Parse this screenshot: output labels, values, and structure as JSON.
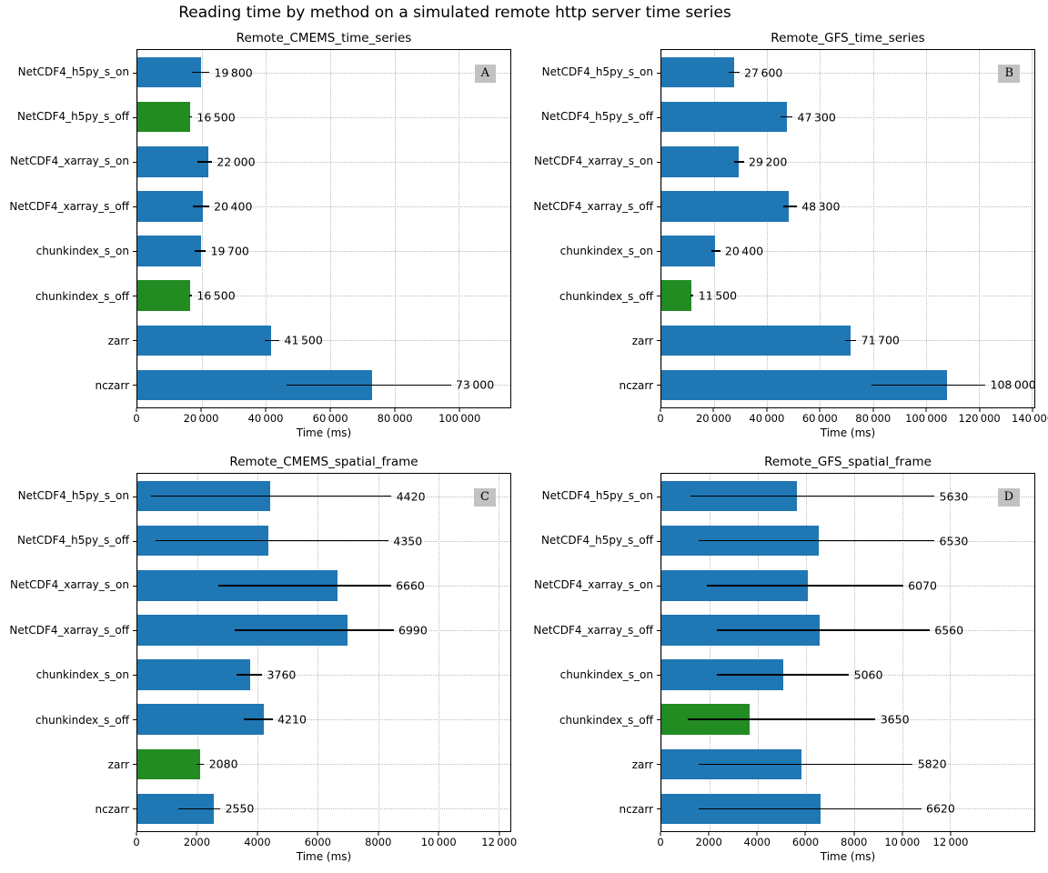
{
  "figure_title": "Reading time by method on a simulated remote http server time series",
  "colors": {
    "bar_blue": "#1f77b4",
    "bar_green": "#228b22",
    "error_bar": "#000000",
    "grid_line": "#bbbbbb",
    "panel_badge_bg": "#c2c2c2"
  },
  "chart_data": [
    {
      "type": "bar",
      "orientation": "horizontal",
      "letter": "A",
      "title": "Remote_CMEMS_time_series",
      "xlabel": "Time (ms)",
      "xlim": [
        0,
        116000
      ],
      "grid": true,
      "categories": [
        "NetCDF4_h5py_s_on",
        "NetCDF4_h5py_s_off",
        "NetCDF4_xarray_s_on",
        "NetCDF4_xarray_s_off",
        "chunkindex_s_on",
        "chunkindex_s_off",
        "zarr",
        "nczarr"
      ],
      "values": [
        19800,
        16500,
        22000,
        20400,
        19700,
        16500,
        41500,
        73000
      ],
      "value_labels": [
        "19 800",
        "16 500",
        "22 000",
        "20 400",
        "19 700",
        "16 500",
        "41 500",
        "73 000"
      ],
      "errors_low": [
        17000,
        16100,
        18800,
        17200,
        17800,
        16100,
        39500,
        46500
      ],
      "errors_high": [
        22400,
        17000,
        23200,
        22300,
        21300,
        17000,
        44200,
        97500
      ],
      "green_bar_indices": [
        1,
        5
      ],
      "xticks": [
        0,
        20000,
        40000,
        60000,
        80000,
        100000
      ],
      "xtick_labels": [
        "0",
        "20 000",
        "40 000",
        "60 000",
        "80 000",
        "100 000"
      ]
    },
    {
      "type": "bar",
      "orientation": "horizontal",
      "letter": "B",
      "title": "Remote_GFS_time_series",
      "xlabel": "Time (ms)",
      "xlim": [
        0,
        141000
      ],
      "grid": true,
      "categories": [
        "NetCDF4_h5py_s_on",
        "NetCDF4_h5py_s_off",
        "NetCDF4_xarray_s_on",
        "NetCDF4_xarray_s_off",
        "chunkindex_s_on",
        "chunkindex_s_off",
        "zarr",
        "nczarr"
      ],
      "values": [
        27600,
        47300,
        29200,
        48300,
        20400,
        11500,
        71700,
        108000
      ],
      "value_labels": [
        "27 600",
        "47 300",
        "29 200",
        "48 300",
        "20 400",
        "11 500",
        "71 700",
        "108 000"
      ],
      "errors_low": [
        25500,
        45000,
        27400,
        46200,
        19000,
        11000,
        69500,
        79500
      ],
      "errors_high": [
        29500,
        49600,
        31200,
        51200,
        22200,
        12200,
        73700,
        122500
      ],
      "green_bar_indices": [
        5
      ],
      "xticks": [
        0,
        20000,
        40000,
        60000,
        80000,
        100000,
        120000,
        140000
      ],
      "xtick_labels": [
        "0",
        "20 000",
        "40 000",
        "60 000",
        "80 000",
        "100 000",
        "120 000",
        "140 000"
      ]
    },
    {
      "type": "bar",
      "orientation": "horizontal",
      "letter": "C",
      "title": "Remote_CMEMS_spatial_frame",
      "xlabel": "Time (ms)",
      "xlim": [
        0,
        12400
      ],
      "grid": true,
      "categories": [
        "NetCDF4_h5py_s_on",
        "NetCDF4_h5py_s_off",
        "NetCDF4_xarray_s_on",
        "NetCDF4_xarray_s_off",
        "chunkindex_s_on",
        "chunkindex_s_off",
        "zarr",
        "nczarr"
      ],
      "values": [
        4420,
        4350,
        6660,
        6990,
        3760,
        4210,
        2080,
        2550
      ],
      "value_labels": [
        "4420",
        "4350",
        "6660",
        "6990",
        "3760",
        "4210",
        "2080",
        "2550"
      ],
      "errors_low": [
        450,
        600,
        2700,
        3250,
        3300,
        3530,
        1980,
        1350
      ],
      "errors_high": [
        8450,
        8350,
        8430,
        8520,
        4150,
        4500,
        2220,
        2760
      ],
      "green_bar_indices": [
        6
      ],
      "xticks": [
        0,
        2000,
        4000,
        6000,
        8000,
        10000,
        12000
      ],
      "xtick_labels": [
        "0",
        "2000",
        "4000",
        "6000",
        "8000",
        "10 000",
        "12 000"
      ]
    },
    {
      "type": "bar",
      "orientation": "horizontal",
      "letter": "D",
      "title": "Remote_GFS_spatial_frame",
      "xlabel": "Time (ms)",
      "xlim": [
        0,
        15500
      ],
      "grid": true,
      "categories": [
        "NetCDF4_h5py_s_on",
        "NetCDF4_h5py_s_off",
        "NetCDF4_xarray_s_on",
        "NetCDF4_xarray_s_off",
        "chunkindex_s_on",
        "chunkindex_s_off",
        "zarr",
        "nczarr"
      ],
      "values": [
        5630,
        6530,
        6070,
        6560,
        5060,
        3650,
        5820,
        6620
      ],
      "value_labels": [
        "5630",
        "6530",
        "6070",
        "6560",
        "5060",
        "3650",
        "5820",
        "6620"
      ],
      "errors_low": [
        1200,
        1550,
        1900,
        2300,
        2300,
        1100,
        1550,
        1550
      ],
      "errors_high": [
        11350,
        11350,
        10050,
        11150,
        7800,
        8900,
        10450,
        10800
      ],
      "green_bar_indices": [
        5
      ],
      "xticks": [
        0,
        2000,
        4000,
        6000,
        8000,
        10000,
        12000
      ],
      "xtick_labels": [
        "0",
        "2000",
        "4000",
        "6000",
        "8000",
        "10 000",
        "12 000"
      ]
    }
  ]
}
